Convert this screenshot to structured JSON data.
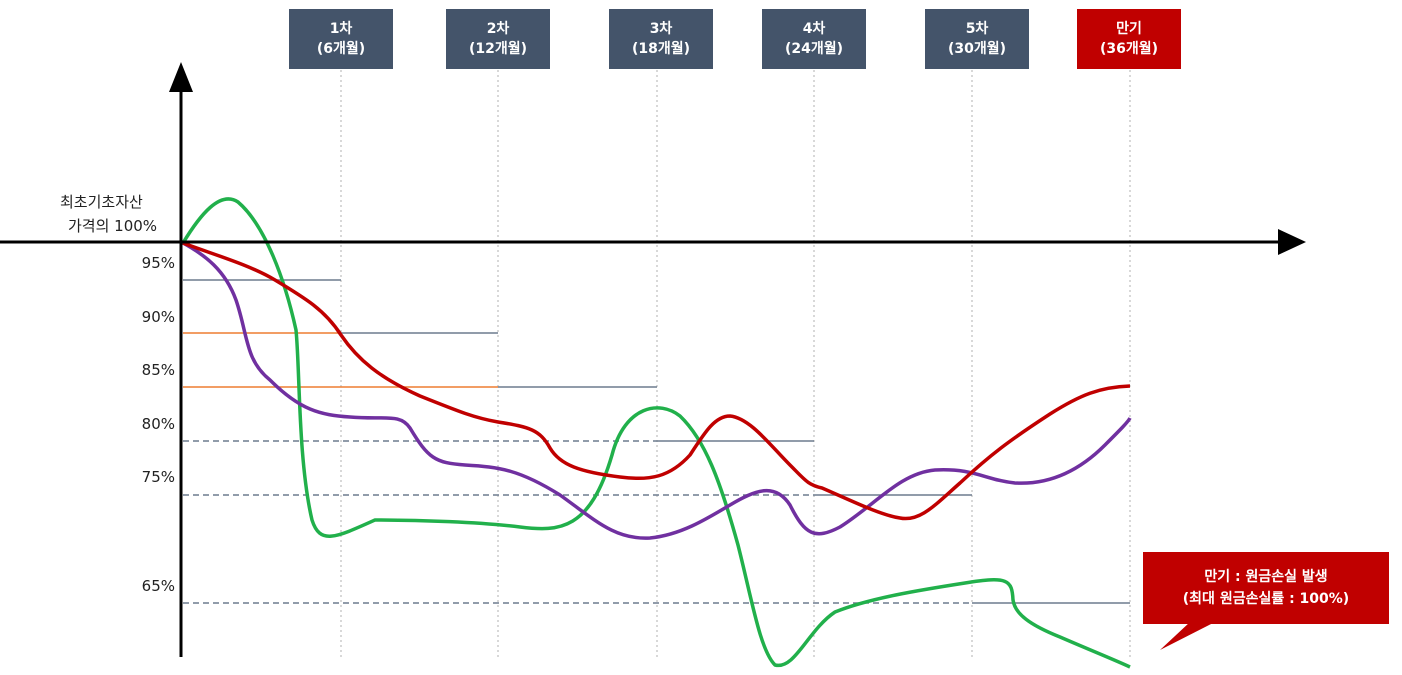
{
  "origin_label": {
    "line1": "최초기초자산",
    "line2": "가격의 100%"
  },
  "y_labels": [
    "95%",
    "90%",
    "85%",
    "80%",
    "75%",
    "65%"
  ],
  "periods": [
    {
      "line1": "1차",
      "line2": "(6개월)"
    },
    {
      "line1": "2차",
      "line2": "(12개월)"
    },
    {
      "line1": "3차",
      "line2": "(18개월)"
    },
    {
      "line1": "4차",
      "line2": "(24개월)"
    },
    {
      "line1": "5차",
      "line2": "(30개월)"
    },
    {
      "line1": "만기",
      "line2": "(36개월)"
    }
  ],
  "callout": {
    "line1": "만기 : 원금손실 발생",
    "line2": "(최대 원금손실률 : 100%)"
  },
  "colors": {
    "period_box": "#44546a",
    "maturity_box": "#c00000",
    "callout": "#c00000",
    "red_line": "#c00000",
    "purple_line": "#7030a0",
    "green_line": "#21b04b",
    "orange_line": "#ed7d31",
    "barrier_line": "#6d7b8d"
  }
}
